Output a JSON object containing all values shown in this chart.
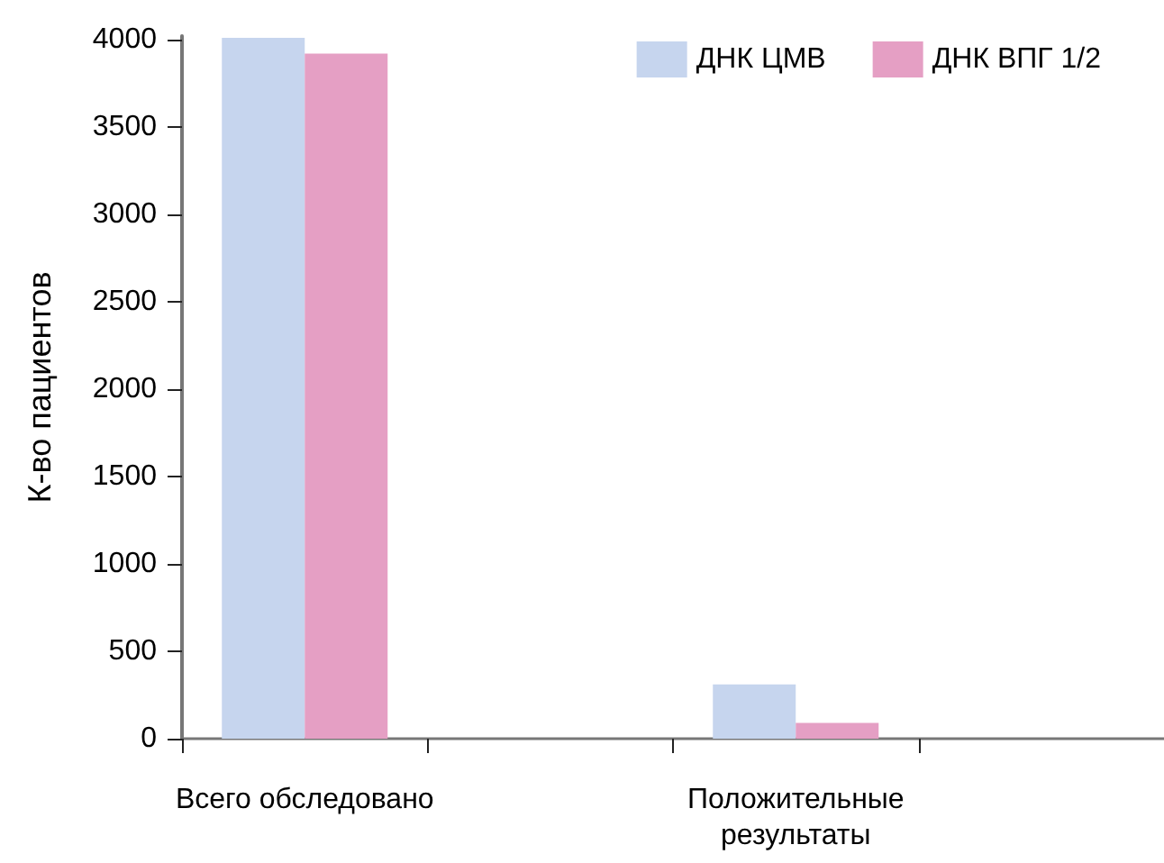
{
  "chart_data": {
    "type": "bar",
    "ylabel": "К-во пациентов",
    "categories": [
      "Всего обследовано",
      null,
      "Положительные результаты",
      null
    ],
    "series": [
      {
        "name": "ДНК ЦМВ",
        "color": "#c6d5ee",
        "values": [
          4010,
          null,
          310,
          null
        ]
      },
      {
        "name": "ДНК ВПГ 1/2",
        "color": "#e59fc4",
        "values": [
          3920,
          null,
          90,
          null
        ]
      }
    ],
    "ylim": [
      0,
      4020
    ],
    "yticks": [
      0,
      500,
      1000,
      1500,
      2000,
      2500,
      3000,
      3500,
      4000
    ],
    "grid": false,
    "legend": "top right"
  }
}
